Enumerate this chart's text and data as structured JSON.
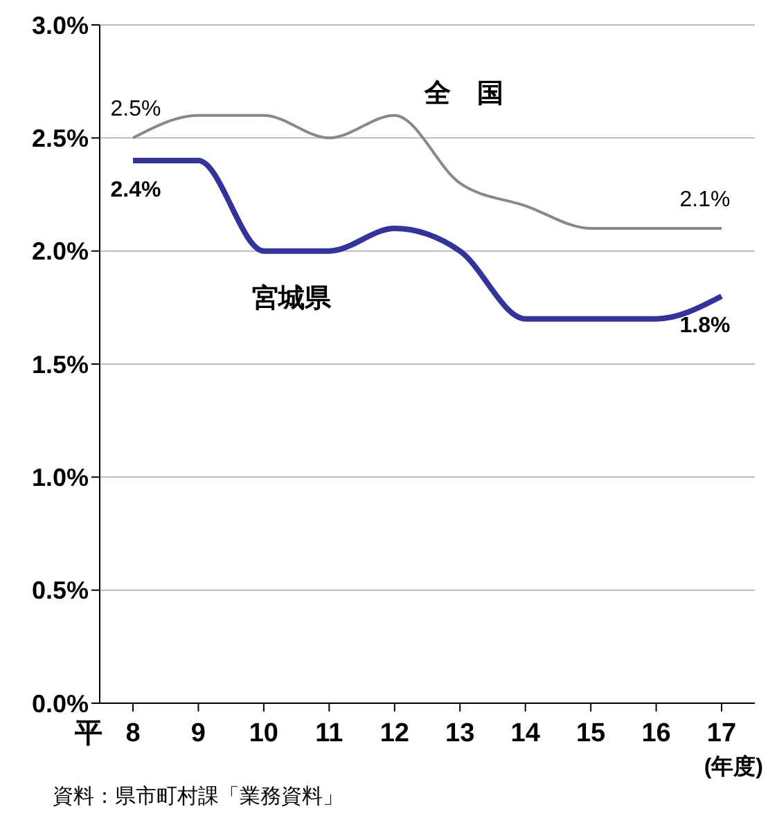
{
  "chart_data": {
    "type": "line",
    "categories": [
      "8",
      "9",
      "10",
      "11",
      "12",
      "13",
      "14",
      "15",
      "16",
      "17"
    ],
    "series": [
      {
        "name": "全　国",
        "color": "#888888",
        "values": [
          2.5,
          2.6,
          2.6,
          2.5,
          2.6,
          2.3,
          2.2,
          2.1,
          2.1,
          2.1
        ],
        "value_labels": [
          "2.5%",
          null,
          null,
          null,
          null,
          null,
          null,
          null,
          null,
          "2.1%"
        ]
      },
      {
        "name": "宮城県",
        "color": "#333399",
        "values": [
          2.4,
          2.4,
          2.0,
          2.0,
          2.1,
          2.0,
          1.7,
          1.7,
          1.7,
          1.8
        ],
        "value_labels": [
          "2.4%",
          null,
          null,
          null,
          null,
          null,
          null,
          null,
          null,
          "1.8%"
        ]
      }
    ],
    "ylim": [
      0,
      3.0
    ],
    "yticks": [
      {
        "value": 0,
        "label": "0.0%"
      },
      {
        "value": 0.5,
        "label": "0.5%"
      },
      {
        "value": 1.0,
        "label": "1.0%"
      },
      {
        "value": 1.5,
        "label": "1.5%"
      },
      {
        "value": 2.0,
        "label": "2.0%"
      },
      {
        "value": 2.5,
        "label": "2.5%"
      },
      {
        "value": 3.0,
        "label": "3.0%"
      }
    ],
    "xlabel": "(年度)",
    "annotations": [
      "平",
      "資料：県市町村課「業務資料」"
    ],
    "grid": "y",
    "legend": false,
    "marker": "none",
    "line_style": "solid"
  }
}
